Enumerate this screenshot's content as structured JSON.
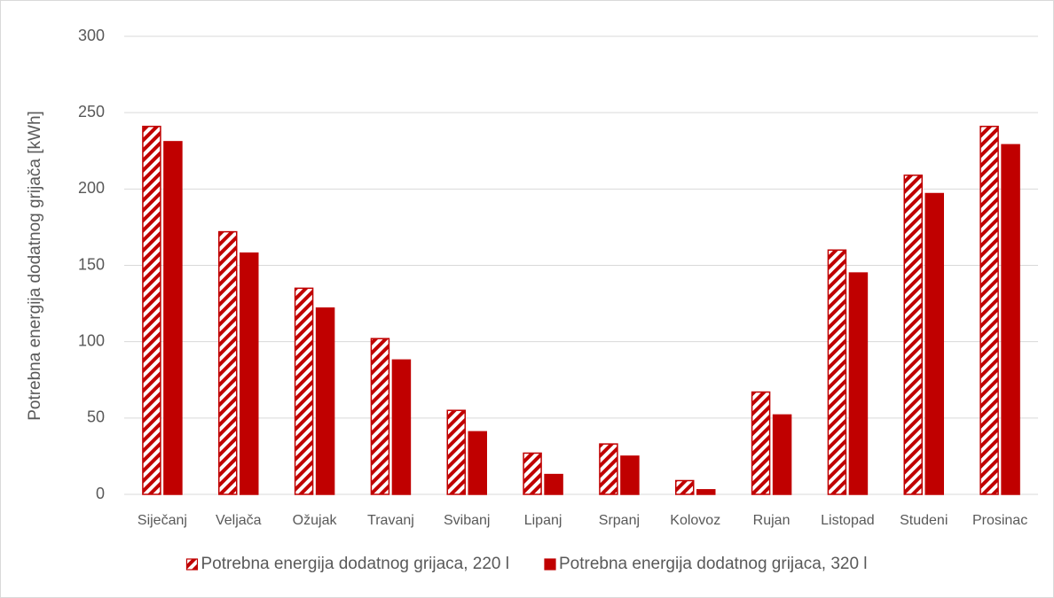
{
  "chart_data": {
    "type": "bar",
    "y_label": "Potrebna energija dodatnog grijača [kWh]",
    "categories": [
      "Siječanj",
      "Veljača",
      "Ožujak",
      "Travanj",
      "Svibanj",
      "Lipanj",
      "Srpanj",
      "Kolovoz",
      "Rujan",
      "Listopad",
      "Studeni",
      "Prosinac"
    ],
    "series": [
      {
        "name": "Potrebna energija dodatnog grijaca, 220 l",
        "color": "#c00000",
        "pattern": "hatch",
        "values": [
          241,
          172,
          135,
          102,
          55,
          27,
          33,
          9,
          67,
          160,
          209,
          241
        ]
      },
      {
        "name": "Potrebna energija dodatnog grijaca, 320 l",
        "color": "#c00000",
        "pattern": "solid",
        "values": [
          231,
          158,
          122,
          88,
          41,
          13,
          25,
          3,
          52,
          145,
          197,
          229
        ]
      }
    ],
    "ylim": [
      0,
      300
    ],
    "yticks": [
      0,
      50,
      100,
      150,
      200,
      250,
      300
    ],
    "grid": true,
    "legend": "bottom"
  }
}
